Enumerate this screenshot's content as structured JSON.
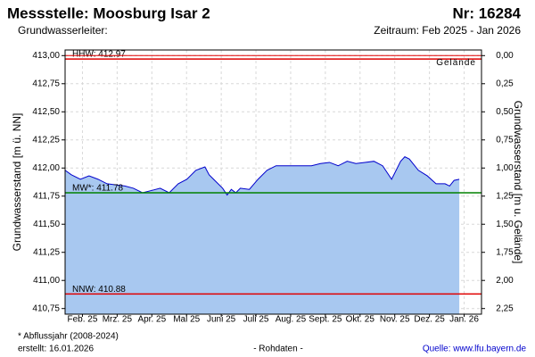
{
  "chart_data": {
    "type": "area",
    "title": "Messstelle: Moosburg Isar 2",
    "number": "Nr: 16284",
    "subtitle": "Grundwasserleiter:",
    "period": "Zeitraum: Feb 2025 - Jan 2026",
    "ylabel": "Grundwasserstand [m ü. NN]",
    "y2label": "Grundwasserstand [m u. Gelände]",
    "footnote": "* Abflussjahr (2008-2024)",
    "created": "erstellt:  16.01.2026",
    "data_note": "- Rohdaten -",
    "source": "Quelle:  www.lfu.bayern.de",
    "surface_label": "Gelände",
    "xlim": [
      0,
      12
    ],
    "xticks": [
      {
        "value": 0.5,
        "label": "Feb. 25"
      },
      {
        "value": 1.5,
        "label": "Mrz. 25"
      },
      {
        "value": 2.5,
        "label": "Apr. 25"
      },
      {
        "value": 3.5,
        "label": "Mai 25"
      },
      {
        "value": 4.5,
        "label": "Juni 25"
      },
      {
        "value": 5.5,
        "label": "Juli 25"
      },
      {
        "value": 6.5,
        "label": "Aug. 25"
      },
      {
        "value": 7.5,
        "label": "Sept. 25"
      },
      {
        "value": 8.5,
        "label": "Okt. 25"
      },
      {
        "value": 9.5,
        "label": "Nov. 25"
      },
      {
        "value": 10.5,
        "label": "Dez. 25"
      },
      {
        "value": 11.5,
        "label": "Jan. 26"
      }
    ],
    "ylim": [
      410.7,
      413.05
    ],
    "yticks": [
      {
        "value": 413,
        "label": "413,00"
      },
      {
        "value": 412.75,
        "label": "412,75"
      },
      {
        "value": 412.5,
        "label": "412,50"
      },
      {
        "value": 412.25,
        "label": "412,25"
      },
      {
        "value": 412,
        "label": "412,00"
      },
      {
        "value": 411.75,
        "label": "411,75"
      },
      {
        "value": 411.5,
        "label": "411,50"
      },
      {
        "value": 411.25,
        "label": "411,25"
      },
      {
        "value": 411,
        "label": "411,00"
      },
      {
        "value": 410.75,
        "label": "410,75"
      }
    ],
    "y2lim": [
      2.3,
      -0.05
    ],
    "y2ticks": [
      {
        "value": 0,
        "label": "0,00"
      },
      {
        "value": 0.25,
        "label": "0,25"
      },
      {
        "value": 0.5,
        "label": "0,50"
      },
      {
        "value": 0.75,
        "label": "0,75"
      },
      {
        "value": 1,
        "label": "1,00"
      },
      {
        "value": 1.25,
        "label": "1,25"
      },
      {
        "value": 1.5,
        "label": "1,50"
      },
      {
        "value": 1.75,
        "label": "1,75"
      },
      {
        "value": 2,
        "label": "2,00"
      },
      {
        "value": 2.25,
        "label": "2,25"
      }
    ],
    "grid": true,
    "x": [
      0,
      0.18,
      0.44,
      0.69,
      0.95,
      1.21,
      1.46,
      1.72,
      1.97,
      2.23,
      2.49,
      2.74,
      3.0,
      3.26,
      3.51,
      3.77,
      4.03,
      4.15,
      4.28,
      4.54,
      4.67,
      4.79,
      4.92,
      5.05,
      5.31,
      5.56,
      5.82,
      6.08,
      6.33,
      6.59,
      6.85,
      7.1,
      7.36,
      7.62,
      7.87,
      8.13,
      8.38,
      8.64,
      8.9,
      9.15,
      9.41,
      9.67,
      9.79,
      9.92,
      10.18,
      10.44,
      10.69,
      10.95,
      11.08,
      11.21,
      11.36
    ],
    "series": [
      {
        "color": "#0000cc",
        "fill": "#a8c8f0",
        "values": [
          411.98,
          411.94,
          411.9,
          411.93,
          411.9,
          411.86,
          411.85,
          411.84,
          411.82,
          411.78,
          411.8,
          411.82,
          411.78,
          411.86,
          411.9,
          411.98,
          412.01,
          411.94,
          411.9,
          411.82,
          411.76,
          411.81,
          411.78,
          411.82,
          411.81,
          411.9,
          411.98,
          412.02,
          412.02,
          412.02,
          412.02,
          412.02,
          412.04,
          412.05,
          412.02,
          412.06,
          412.04,
          412.05,
          412.06,
          412.02,
          411.9,
          412.06,
          412.1,
          412.08,
          411.98,
          411.93,
          411.86,
          411.86,
          411.84,
          411.89,
          411.9
        ]
      }
    ],
    "reference_lines": [
      {
        "label": "HHW: 412.97",
        "value": 412.97,
        "color": "#e00000"
      },
      {
        "label": "MW*: 411.78",
        "value": 411.78,
        "color": "#008000"
      },
      {
        "label": "NNW: 410.88",
        "value": 410.88,
        "color": "#e00000"
      }
    ]
  }
}
